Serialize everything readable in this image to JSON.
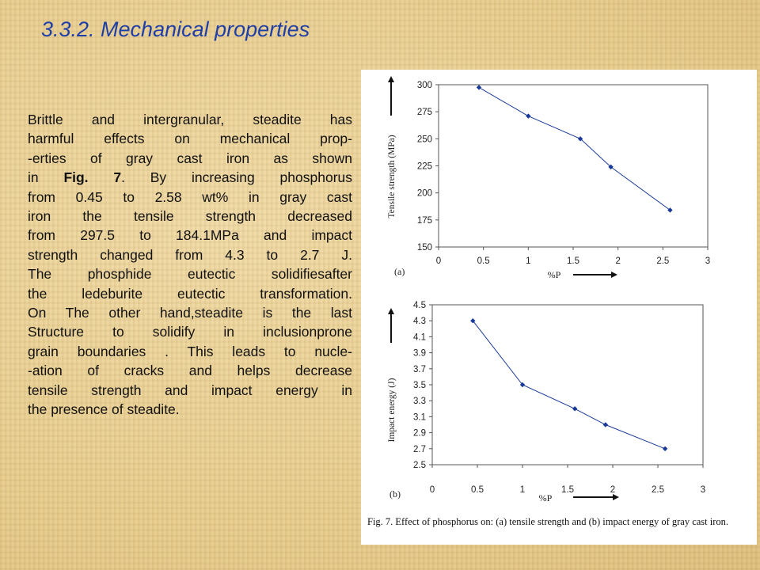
{
  "slide": {
    "title": "3.3.2. Mechanical properties",
    "paragraph_lines": [
      "Brittle and intergranular,  steadite has",
      "harmful  effects  on mechanical prop-",
      "-erties  of  gray  cast  iron  as  shown",
      "in |Fig. 7|. By  increasing  phosphorus",
      "from  0.45 to 2.58 wt%  in  gray  cast",
      "iron the  tensile  strength  decreased",
      "from 297.5 to 184.1MPa  and impact",
      "strength  changed  from 4.3 to 2.7 J.",
      "The phosphide eutectic  solidifiesafter",
      "the ledeburite eutectic transformation.",
      "On The other hand,steadite is the last",
      "Structure  to  solidify in inclusionprone",
      "grain boundaries  . This leads to nucle-",
      "-ation  of  cracks  and  helps decrease",
      "tensile  strength and impact energy in",
      "the presence of steadite."
    ]
  },
  "figure": {
    "caption": "Fig. 7.  Effect of phosphorus on: (a) tensile strength and (b) impact energy of gray cast iron.",
    "colors": {
      "series": "#1a3a9a",
      "axis": "#555555",
      "panel": "#ffffff"
    }
  },
  "chart_data": [
    {
      "type": "line",
      "panel_label": "(a)",
      "xlabel": "%P",
      "ylabel": "Tensile strength (MPa)",
      "x": [
        0.45,
        1.0,
        1.58,
        1.92,
        2.58
      ],
      "y": [
        297.5,
        271,
        250,
        224,
        184.1
      ],
      "xlim": [
        0,
        3
      ],
      "ylim": [
        150,
        300
      ],
      "xticks": [
        "0",
        "0.5",
        "1",
        "1.5",
        "2",
        "2.5",
        "3"
      ],
      "yticks": [
        "150",
        "175",
        "200",
        "225",
        "250",
        "275",
        "300"
      ],
      "grid": false
    },
    {
      "type": "line",
      "panel_label": "(b)",
      "xlabel": "%P",
      "ylabel": "Impact energy (J)",
      "x": [
        0.45,
        1.0,
        1.58,
        1.92,
        2.58
      ],
      "y": [
        4.3,
        3.5,
        3.2,
        3.0,
        2.7
      ],
      "xlim": [
        0,
        3
      ],
      "ylim": [
        2.5,
        4.5
      ],
      "xticks": [
        "0",
        "0.5",
        "1",
        "1.5",
        "2",
        "2.5",
        "3"
      ],
      "yticks": [
        "2.5",
        "2.7",
        "2.9",
        "3.1",
        "3.3",
        "3.5",
        "3.7",
        "3.9",
        "4.1",
        "4.3",
        "4.5"
      ],
      "grid": false
    }
  ]
}
